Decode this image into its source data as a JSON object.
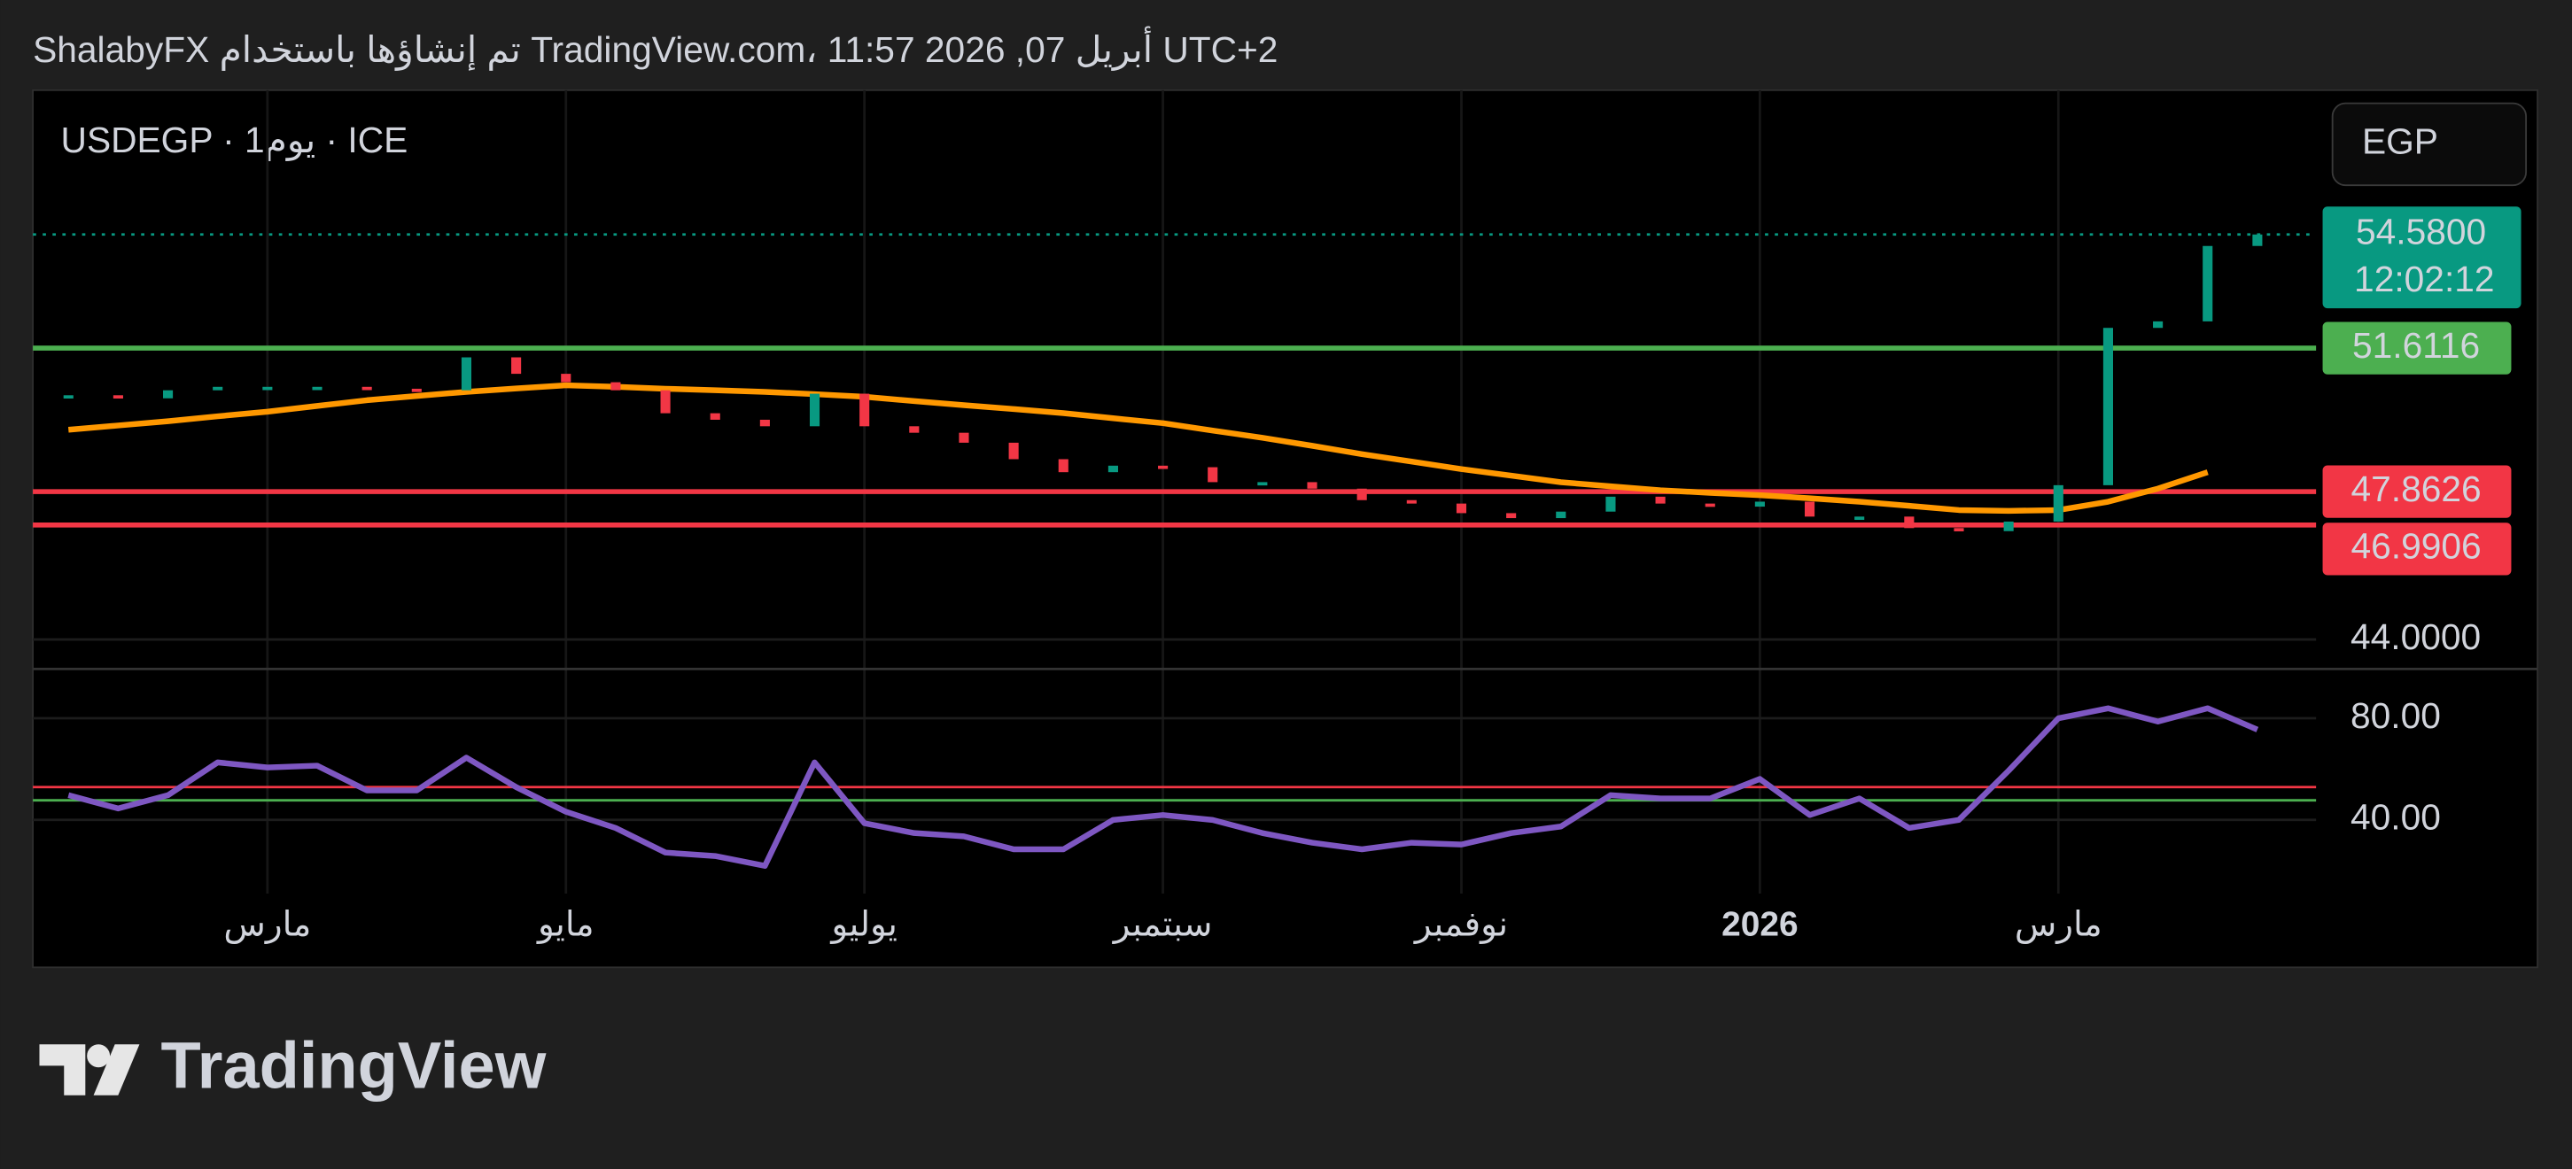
{
  "header": "ShalabyFX تم إنشاؤها باستخدام TradingView.com، 11:57 2026 ,07 أبريل UTC+2",
  "logo": "TradingView",
  "chart_data": [
    {
      "type": "candlestick",
      "subtitle": "USDEGP · 1يوم · ICE",
      "currency": "EGP",
      "categories": [
        null,
        null,
        null,
        null,
        "مارس",
        null,
        null,
        null,
        null,
        null,
        "مايو",
        null,
        null,
        null,
        null,
        null,
        "يوليو",
        null,
        null,
        null,
        null,
        null,
        "سبتمبر",
        null,
        null,
        null,
        null,
        null,
        "نوفمبر",
        null,
        null,
        null,
        null,
        null,
        "2026",
        null,
        null,
        null,
        null,
        null,
        "مارس",
        null,
        null,
        null,
        null
      ],
      "series": [
        {
          "color": "#089981",
          "down_color": "#f23645",
          "values": [
            50.38,
            50.3,
            50.51,
            50.6,
            50.6,
            50.6,
            50.55,
            50.51,
            51.37,
            50.94,
            50.72,
            50.51,
            49.91,
            49.74,
            49.57,
            50.42,
            49.57,
            49.4,
            49.14,
            48.71,
            48.37,
            48.54,
            48.5,
            48.11,
            48.11,
            47.94,
            47.64,
            47.55,
            47.3,
            47.17,
            47.34,
            47.73,
            47.55,
            47.47,
            47.6,
            47.21,
            47.21,
            46.91,
            46.83,
            47.08,
            48.03,
            52.14,
            52.31,
            54.28,
            54.58
          ]
        },
        {
          "color": "#ff9800",
          "values": [
            49.48,
            49.59,
            49.7,
            49.83,
            49.95,
            50.1,
            50.25,
            50.36,
            50.47,
            50.56,
            50.64,
            50.6,
            50.55,
            50.51,
            50.47,
            50.41,
            50.34,
            50.23,
            50.12,
            50.02,
            49.91,
            49.78,
            49.65,
            49.46,
            49.27,
            49.06,
            48.84,
            48.65,
            48.45,
            48.28,
            48.11,
            48.0,
            47.9,
            47.83,
            47.77,
            47.69,
            47.6,
            47.49,
            47.38,
            47.36,
            47.38,
            47.6,
            47.94,
            48.37,
            null
          ]
        }
      ],
      "levels": [
        {
          "value": 51.6116,
          "color": "#4caf50"
        },
        {
          "value": 47.8626,
          "color": "#f23645"
        },
        {
          "value": 46.9906,
          "color": "#f23645"
        }
      ],
      "last_price": {
        "value": 54.58,
        "label": "54.5800"
      },
      "countdown": "12:02:12",
      "ylim": [
        43.23,
        58.35
      ],
      "yticks": [
        {
          "value": 44,
          "label": "44.0000"
        }
      ],
      "grid": true
    },
    {
      "type": "line",
      "series": [
        {
          "color": "#7e57c2",
          "values": [
            49.7,
            44.5,
            49.7,
            62.6,
            60.6,
            61.3,
            51.6,
            51.6,
            64.5,
            52.9,
            43.2,
            36.8,
            27.1,
            25.8,
            21.9,
            62.6,
            38.7,
            34.8,
            33.5,
            28.4,
            28.4,
            40.0,
            41.9,
            40.0,
            34.8,
            31.0,
            28.4,
            31.0,
            30.3,
            34.8,
            37.4,
            49.7,
            48.4,
            48.4,
            56.1,
            41.9,
            48.4,
            36.8,
            40.0,
            59.4,
            80.0,
            83.9,
            78.7,
            83.9,
            75.5
          ]
        }
      ],
      "bands": [
        {
          "value": 52.9,
          "color": "#f23645"
        },
        {
          "value": 47.7,
          "color": "#4caf50"
        }
      ],
      "ylim": [
        11,
        99.4
      ],
      "yticks": [
        {
          "value": 80,
          "label": "80.00"
        },
        {
          "value": 40,
          "label": "40.00"
        }
      ],
      "grid": true
    }
  ]
}
